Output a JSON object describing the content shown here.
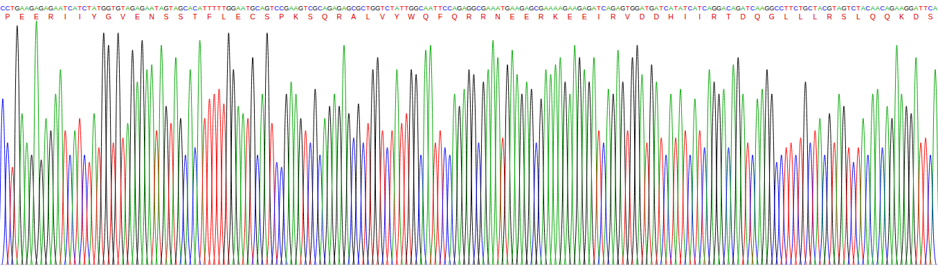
{
  "chart_data": {
    "type": "chromatogram",
    "sequence": [
      "C",
      "C",
      "T",
      "G",
      "A",
      "A",
      "G",
      "A",
      "G",
      "A",
      "G",
      "A",
      "A",
      "T",
      "C",
      "A",
      "T",
      "C",
      "T",
      "A",
      "T",
      "G",
      "G",
      "T",
      "G",
      "T",
      "A",
      "G",
      "A",
      "G",
      "A",
      "A",
      "T",
      "A",
      "G",
      "T",
      "A",
      "G",
      "C",
      "A",
      "C",
      "A",
      "T",
      "T",
      "T",
      "T",
      "T",
      "G",
      "G",
      "A",
      "A",
      "T",
      "G",
      "C",
      "A",
      "G",
      "T",
      "C",
      "C",
      "G",
      "A",
      "A",
      "G",
      "T",
      "C",
      "G",
      "C",
      "A",
      "G",
      "A",
      "G",
      "A",
      "G",
      "C",
      "G",
      "C",
      "T",
      "G",
      "G",
      "T",
      "C",
      "T",
      "A",
      "T",
      "T",
      "G",
      "G",
      "C",
      "A",
      "A",
      "T",
      "T",
      "C",
      "C",
      "A",
      "G",
      "A",
      "G",
      "G",
      "C",
      "G",
      "A",
      "A",
      "A",
      "T",
      "G",
      "A",
      "A",
      "G",
      "A",
      "G",
      "C",
      "G",
      "A",
      "A",
      "A",
      "A",
      "G",
      "A",
      "A",
      "G",
      "A",
      "G",
      "A",
      "T",
      "C",
      "A",
      "G",
      "A",
      "G",
      "T",
      "G",
      "G",
      "A",
      "T",
      "G",
      "A",
      "T",
      "C",
      "A",
      "T",
      "A",
      "T",
      "C",
      "A",
      "T",
      "C",
      "A",
      "G",
      "G",
      "A",
      "C",
      "A",
      "G",
      "A",
      "T",
      "C",
      "A",
      "A",
      "G",
      "G",
      "C",
      "C",
      "T",
      "T",
      "C",
      "T",
      "G",
      "C",
      "T",
      "A",
      "C",
      "G",
      "T",
      "A",
      "G",
      "T",
      "C",
      "T",
      "A",
      "C",
      "A",
      "A",
      "C",
      "A",
      "G",
      "A",
      "A",
      "G",
      "G",
      "A",
      "T",
      "T",
      "C",
      "A"
    ],
    "translation": [
      "P",
      "E",
      "E",
      "R",
      "I",
      "I",
      "Y",
      "G",
      "V",
      "E",
      "N",
      "S",
      "S",
      "T",
      "F",
      "L",
      "E",
      "C",
      "S",
      "P",
      "K",
      "S",
      "Q",
      "R",
      "A",
      "L",
      "V",
      "Y",
      "W",
      "Q",
      "F",
      "Q",
      "R",
      "R",
      "N",
      "E",
      "E",
      "R",
      "K",
      "E",
      "E",
      "I",
      "R",
      "V",
      "D",
      "D",
      "H",
      "I",
      "I",
      "R",
      "T",
      "D",
      "Q",
      "G",
      "L",
      "L",
      "L",
      "R",
      "S",
      "L",
      "Q",
      "Q",
      "K",
      "D",
      "S"
    ],
    "heights": [
      68,
      50,
      40,
      98,
      62,
      50,
      45,
      100,
      43,
      60,
      55,
      70,
      80,
      55,
      45,
      55,
      60,
      45,
      42,
      62,
      48,
      95,
      90,
      50,
      95,
      52,
      58,
      88,
      75,
      92,
      80,
      82,
      55,
      90,
      65,
      58,
      85,
      60,
      45,
      80,
      48,
      92,
      60,
      68,
      70,
      72,
      66,
      95,
      80,
      65,
      62,
      60,
      85,
      45,
      70,
      95,
      58,
      42,
      40,
      70,
      75,
      70,
      60,
      55,
      50,
      72,
      45,
      60,
      65,
      70,
      65,
      90,
      62,
      52,
      66,
      50,
      58,
      80,
      85,
      55,
      48,
      55,
      80,
      58,
      62,
      80,
      78,
      45,
      88,
      90,
      50,
      55,
      48,
      45,
      70,
      65,
      72,
      80,
      78,
      50,
      75,
      80,
      92,
      85,
      52,
      82,
      88,
      78,
      70,
      75,
      72,
      50,
      68,
      80,
      78,
      82,
      85,
      75,
      70,
      90,
      85,
      80,
      75,
      85,
      55,
      50,
      72,
      70,
      88,
      75,
      55,
      85,
      90,
      78,
      50,
      82,
      75,
      52,
      45,
      70,
      52,
      72,
      55,
      45,
      68,
      55,
      48,
      80,
      75,
      70,
      72,
      48,
      82,
      85,
      70,
      50,
      45,
      68,
      72,
      80,
      70,
      42,
      45,
      48,
      50,
      45,
      52,
      75,
      50,
      55,
      60,
      45,
      62,
      50,
      70,
      65,
      48,
      42,
      48,
      60,
      45,
      70,
      72,
      48,
      65,
      60,
      90,
      70,
      65,
      62,
      85,
      50,
      52,
      45,
      80
    ],
    "colors": [
      "#0000ff",
      "#0000ff",
      "#ff0000",
      "#000000",
      "#00a800",
      "#00a800",
      "#000000",
      "#00a800",
      "#000000",
      "#00a800",
      "#000000",
      "#00a800",
      "#00a800",
      "#ff0000",
      "#0000ff",
      "#00a800",
      "#ff0000",
      "#0000ff",
      "#ff0000",
      "#00a800",
      "#ff0000",
      "#000000",
      "#000000",
      "#ff0000",
      "#000000",
      "#ff0000",
      "#00a800",
      "#000000",
      "#00a800",
      "#000000",
      "#00a800",
      "#00a800",
      "#ff0000",
      "#00a800",
      "#000000",
      "#ff0000",
      "#00a800",
      "#000000",
      "#0000ff",
      "#00a800",
      "#0000ff",
      "#00a800",
      "#ff0000",
      "#ff0000",
      "#ff0000",
      "#ff0000",
      "#ff0000",
      "#000000",
      "#000000",
      "#00a800",
      "#00a800",
      "#ff0000",
      "#000000",
      "#0000ff",
      "#00a800",
      "#000000",
      "#ff0000",
      "#0000ff",
      "#0000ff",
      "#000000",
      "#00a800",
      "#00a800",
      "#000000",
      "#ff0000",
      "#0000ff",
      "#000000",
      "#0000ff",
      "#00a800",
      "#000000",
      "#00a800",
      "#000000",
      "#00a800",
      "#000000",
      "#0000ff",
      "#000000",
      "#0000ff",
      "#ff0000",
      "#000000",
      "#000000",
      "#ff0000",
      "#0000ff",
      "#ff0000",
      "#00a800",
      "#ff0000",
      "#ff0000",
      "#000000",
      "#000000",
      "#0000ff",
      "#00a800",
      "#00a800",
      "#ff0000",
      "#ff0000",
      "#0000ff",
      "#0000ff",
      "#00a800",
      "#000000",
      "#00a800",
      "#000000",
      "#000000",
      "#0000ff",
      "#000000",
      "#00a800",
      "#00a800",
      "#00a800",
      "#ff0000",
      "#000000",
      "#00a800",
      "#00a800",
      "#000000",
      "#00a800",
      "#000000",
      "#0000ff",
      "#000000",
      "#00a800",
      "#00a800",
      "#00a800",
      "#00a800",
      "#000000",
      "#00a800",
      "#00a800",
      "#000000",
      "#00a800",
      "#000000",
      "#00a800",
      "#ff0000",
      "#0000ff",
      "#00a800",
      "#000000",
      "#00a800",
      "#000000",
      "#ff0000",
      "#000000",
      "#000000",
      "#00a800",
      "#ff0000",
      "#000000",
      "#00a800",
      "#ff0000",
      "#0000ff",
      "#00a800",
      "#ff0000",
      "#00a800",
      "#ff0000",
      "#0000ff",
      "#00a800",
      "#ff0000",
      "#0000ff",
      "#00a800",
      "#000000",
      "#000000",
      "#00a800",
      "#0000ff",
      "#00a800",
      "#000000",
      "#00a800",
      "#ff0000",
      "#0000ff",
      "#00a800",
      "#00a800",
      "#000000",
      "#000000",
      "#0000ff",
      "#0000ff",
      "#ff0000",
      "#ff0000",
      "#0000ff",
      "#ff0000",
      "#000000",
      "#0000ff",
      "#ff0000",
      "#00a800",
      "#0000ff",
      "#000000",
      "#ff0000",
      "#00a800",
      "#000000",
      "#ff0000",
      "#0000ff",
      "#ff0000",
      "#00a800",
      "#0000ff",
      "#00a800",
      "#00a800",
      "#0000ff",
      "#00a800",
      "#000000",
      "#00a800",
      "#00a800",
      "#000000",
      "#000000",
      "#00a800",
      "#ff0000",
      "#ff0000",
      "#0000ff",
      "#00a800"
    ],
    "ylim": [
      0,
      100
    ],
    "tick_labels": false
  }
}
